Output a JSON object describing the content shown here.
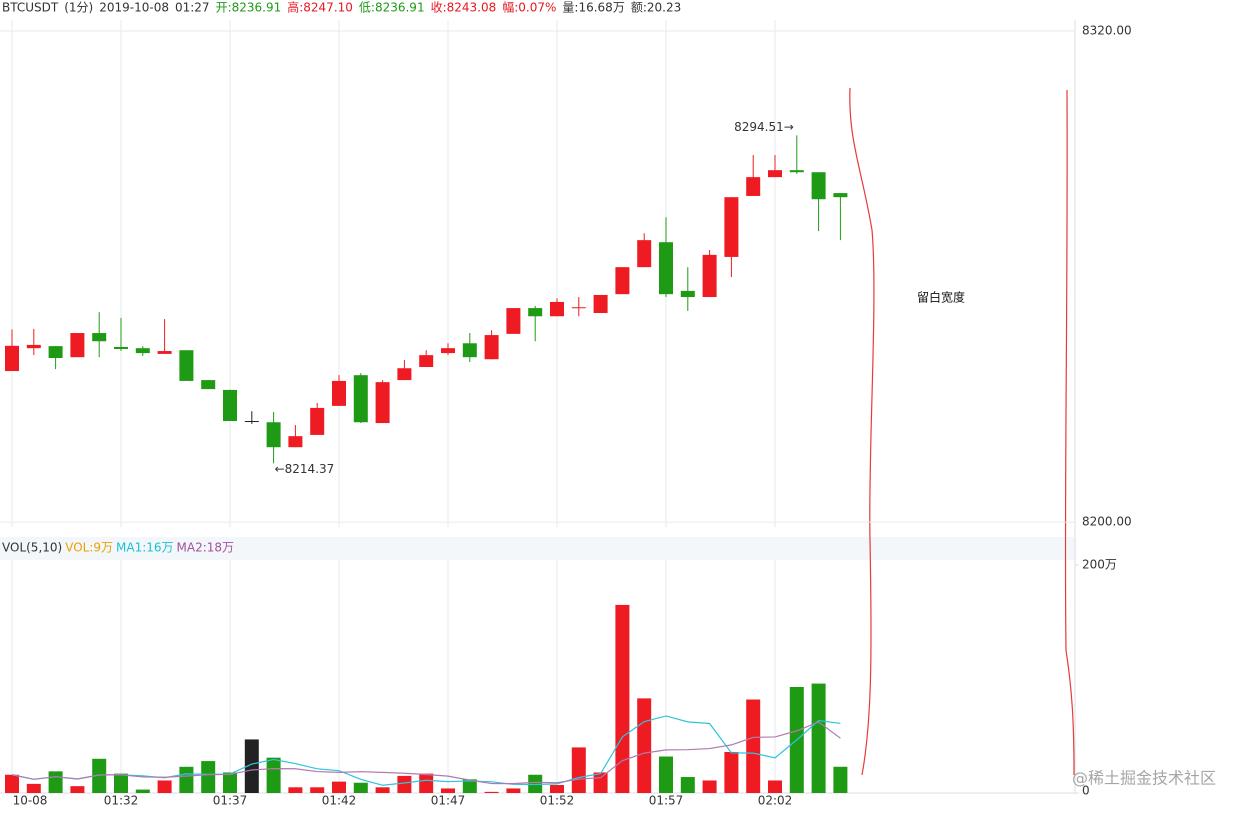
{
  "chart_data": [
    {
      "type": "candlestick",
      "header": [
        {
          "text": "BTCUSDT",
          "color": "#333"
        },
        {
          "text": "(1分)",
          "color": "#333"
        },
        {
          "text": "2019-10-08",
          "color": "#333"
        },
        {
          "text": "01:27",
          "color": "#333"
        },
        {
          "text": "开:8236.91",
          "color": "#1f9a14"
        },
        {
          "text": "高:8247.10",
          "color": "#e8171e"
        },
        {
          "text": "低:8236.91",
          "color": "#1f9a14"
        },
        {
          "text": "收:8243.08",
          "color": "#e8171e"
        },
        {
          "text": "幅:0.07%",
          "color": "#e8171e"
        },
        {
          "text": "量:16.68万",
          "color": "#333"
        },
        {
          "text": "额:20.23",
          "color": "#333"
        }
      ],
      "categories": [
        "10-08",
        null,
        null,
        null,
        null,
        "01:32",
        null,
        null,
        null,
        null,
        "01:37",
        null,
        null,
        null,
        null,
        "01:42",
        null,
        null,
        null,
        null,
        "01:47",
        null,
        null,
        null,
        null,
        "01:52",
        null,
        null,
        null,
        null,
        "01:57",
        null,
        null,
        null,
        null,
        "02:02",
        null,
        null,
        null
      ],
      "open": [
        8236.91,
        8242.5,
        8243.0,
        8240.3,
        8246.2,
        8242.8,
        8242.5,
        8241.1,
        8242.0,
        8234.7,
        8232.3,
        8224.7,
        8224.4,
        8218.3,
        8221.3,
        8228.4,
        8235.9,
        8224.2,
        8234.7,
        8237.9,
        8241.3,
        8243.7,
        8239.8,
        8246.0,
        8252.3,
        8250.3,
        8252.3,
        8251.1,
        8255.7,
        8262.3,
        8268.4,
        8256.5,
        8255.0,
        8264.8,
        8279.7,
        8284.3,
        8286.0,
        8285.5,
        8280.4
      ],
      "high": [
        8247.1,
        8247.2,
        8243.0,
        8246.2,
        8251.3,
        8249.9,
        8243.0,
        8249.6,
        8242.0,
        8234.7,
        8232.3,
        8227.1,
        8226.9,
        8223.7,
        8229.1,
        8235.9,
        8236.4,
        8234.7,
        8239.6,
        8242.0,
        8243.7,
        8246.2,
        8246.9,
        8252.3,
        8252.8,
        8254.7,
        8255.0,
        8255.5,
        8262.3,
        8270.6,
        8274.5,
        8262.3,
        8266.5,
        8279.4,
        8289.7,
        8289.7,
        8294.51,
        8285.5,
        8280.4
      ],
      "low": [
        8236.91,
        8240.8,
        8237.4,
        8240.3,
        8240.3,
        8241.8,
        8240.6,
        8241.1,
        8234.5,
        8232.5,
        8224.7,
        8224.0,
        8214.37,
        8218.3,
        8221.3,
        8228.4,
        8224.2,
        8224.2,
        8234.7,
        8237.9,
        8240.8,
        8239.1,
        8239.8,
        8246.0,
        8244.2,
        8250.3,
        8250.3,
        8251.1,
        8255.7,
        8262.3,
        8255.0,
        8251.6,
        8255.0,
        8259.9,
        8279.7,
        8284.3,
        8285.1,
        8271.1,
        8268.9
      ],
      "close": [
        8243.08,
        8243.3,
        8240.1,
        8246.2,
        8244.2,
        8242.3,
        8241.3,
        8241.8,
        8234.5,
        8232.5,
        8224.7,
        8224.7,
        8218.3,
        8221.0,
        8227.9,
        8234.5,
        8224.4,
        8234.2,
        8237.6,
        8240.8,
        8242.5,
        8240.3,
        8245.7,
        8252.3,
        8250.3,
        8253.8,
        8252.5,
        8255.5,
        8262.3,
        8268.9,
        8255.7,
        8255.0,
        8265.3,
        8279.4,
        8284.3,
        8286.0,
        8285.5,
        8278.9,
        8279.4
      ],
      "up_color": "#ee1c22",
      "down_color": "#1f9a14",
      "flat_color": "#222",
      "ylim": [
        8198.8,
        8322.7
      ],
      "yticks": [
        {
          "value": 8200,
          "label": "8200.00"
        },
        {
          "value": 8320,
          "label": "8320.00"
        }
      ],
      "max_label": "8294.51→",
      "min_label": "←8214.37",
      "grid": true
    },
    {
      "type": "bar",
      "legend": [
        {
          "text": "VOL(5,10)",
          "color": "#333"
        },
        {
          "text": "VOL:9万",
          "color": "#e8a100"
        },
        {
          "text": "MA1:16万",
          "color": "#19c0d8"
        },
        {
          "text": "MA2:18万",
          "color": "#a0529f"
        }
      ],
      "values": [
        16,
        8,
        19,
        6,
        30,
        17,
        3,
        11,
        23,
        28,
        18,
        47,
        31,
        5,
        5,
        10,
        9,
        5,
        15,
        17,
        4,
        12,
        1,
        4,
        16,
        7,
        40,
        18,
        165,
        83,
        32,
        14,
        11,
        36,
        82,
        11,
        93,
        96,
        23
      ],
      "series": [
        {
          "color": "#2ec4dc",
          "values": [
            16,
            12,
            14.3,
            12.3,
            15.8,
            16,
            15,
            13.4,
            16.8,
            16.4,
            16.6,
            25.4,
            29.4,
            25.8,
            21.2,
            19.6,
            12,
            6.8,
            8.8,
            11.2,
            10,
            10.6,
            9.8,
            7.6,
            7.4,
            8,
            13.6,
            17,
            49.2,
            62.6,
            67.6,
            62.4,
            61,
            35.2,
            35,
            30.8,
            46.6,
            63.6,
            61
          ]
        },
        {
          "color": "#b07ab0",
          "values": [
            16,
            12,
            14.3,
            12.3,
            15.8,
            16,
            14.1,
            13.8,
            14.8,
            16.1,
            16.3,
            20.2,
            21.4,
            21.3,
            18.8,
            18.1,
            18.7,
            18.1,
            17.3,
            16.2,
            14.8,
            11.3,
            8.3,
            8.2,
            9.3,
            9,
            12.1,
            13.4,
            28.4,
            35,
            37.8,
            38,
            39,
            42.2,
            48.8,
            49.2,
            54.5,
            62.3,
            48.1
          ]
        }
      ],
      "ylim": [
        0,
        204.4
      ],
      "yticks": [
        {
          "value": 0,
          "label": "0"
        },
        {
          "value": 200,
          "label": "200万"
        }
      ]
    }
  ],
  "annotations": {
    "gap": "留白宽度",
    "watermark": "@稀土掘金技术社区"
  }
}
